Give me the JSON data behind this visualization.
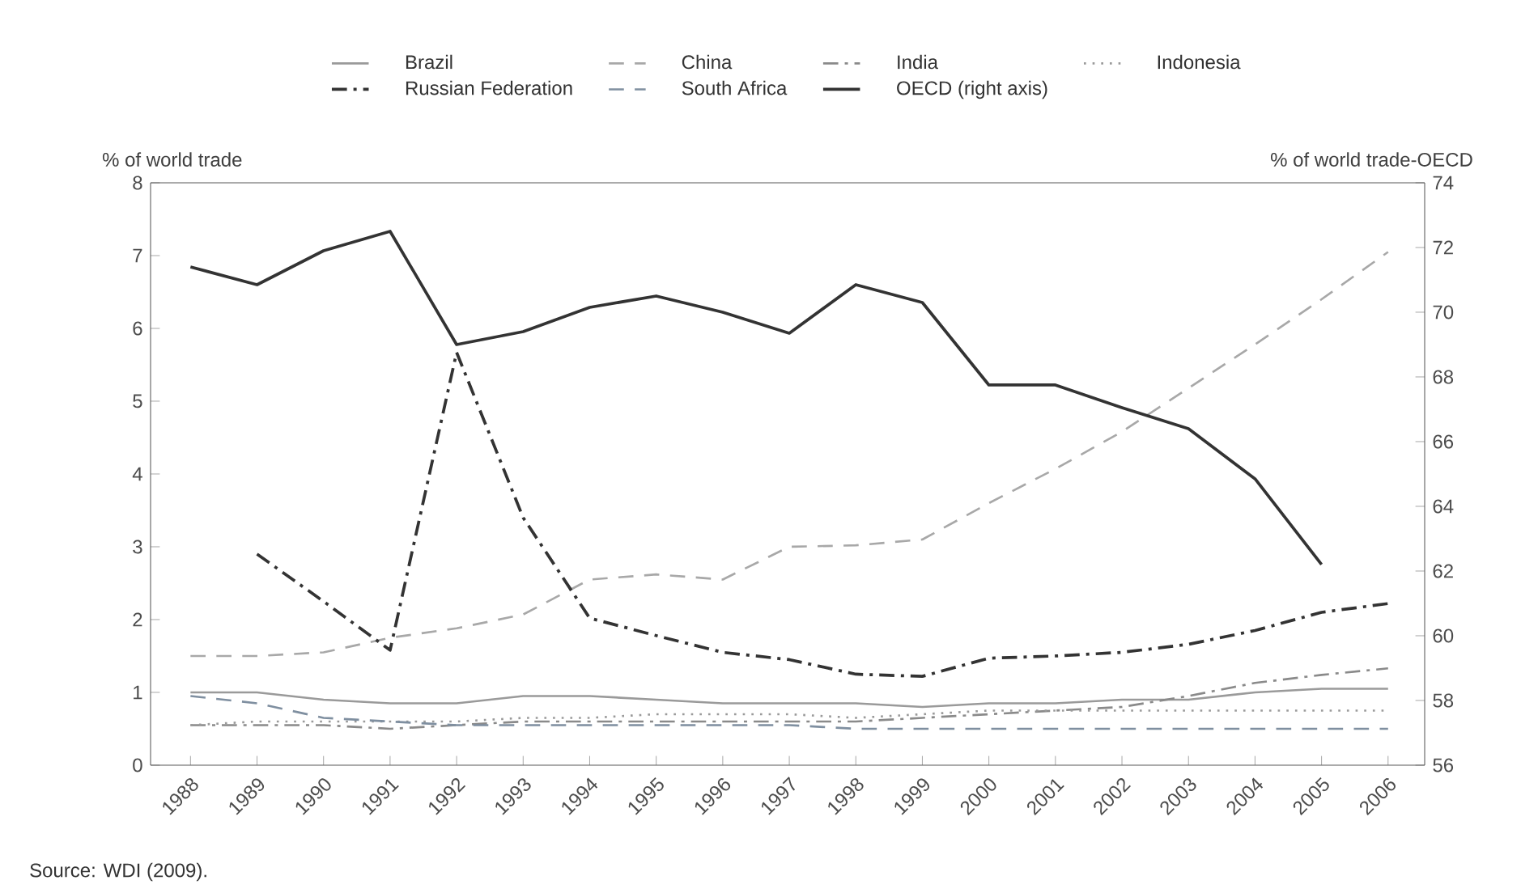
{
  "chart_data": {
    "type": "line",
    "ylabel": "% of world trade",
    "y2label": "% of world trade-OECD",
    "categories": [
      "1988",
      "1989",
      "1990",
      "1991",
      "1992",
      "1993",
      "1994",
      "1995",
      "1996",
      "1997",
      "1998",
      "1999",
      "2000",
      "2001",
      "2002",
      "2003",
      "2004",
      "2005",
      "2006"
    ],
    "series": [
      {
        "name": "Brazil",
        "color": "#9a9a9a",
        "line_style": "solid",
        "values": [
          1.0,
          1.0,
          0.9,
          0.85,
          0.85,
          0.95,
          0.95,
          0.9,
          0.85,
          0.85,
          0.85,
          0.8,
          0.85,
          0.85,
          0.9,
          0.9,
          1.0,
          1.05,
          1.05
        ]
      },
      {
        "name": "China",
        "color": "#a8a8a8",
        "line_style": "dashed",
        "values": [
          1.5,
          1.5,
          1.55,
          1.75,
          1.88,
          2.07,
          2.55,
          2.62,
          2.55,
          3.0,
          3.02,
          3.1,
          3.6,
          4.07,
          4.58,
          5.18,
          5.78,
          6.4,
          7.05
        ]
      },
      {
        "name": "India",
        "color": "#8a8a8a",
        "line_style": "dashdot",
        "values": [
          0.55,
          0.55,
          0.55,
          0.5,
          0.55,
          0.6,
          0.6,
          0.6,
          0.6,
          0.6,
          0.6,
          0.65,
          0.7,
          0.75,
          0.8,
          0.95,
          1.13,
          1.24,
          1.33
        ]
      },
      {
        "name": "Indonesia",
        "color": "#9a9a9a",
        "line_style": "dotted",
        "values": [
          0.55,
          0.6,
          0.6,
          0.6,
          0.6,
          0.65,
          0.65,
          0.7,
          0.7,
          0.7,
          0.65,
          0.7,
          0.75,
          0.75,
          0.75,
          0.75,
          0.75,
          0.75,
          0.75
        ]
      },
      {
        "name": "Russian Federation",
        "color": "#333333",
        "line_style": "dashdot",
        "values": [
          null,
          2.9,
          2.25,
          1.58,
          5.67,
          3.4,
          2.02,
          1.78,
          1.55,
          1.45,
          1.25,
          1.22,
          1.47,
          1.5,
          1.55,
          1.66,
          1.85,
          2.1,
          2.22
        ]
      },
      {
        "name": "South Africa",
        "color": "#7f8fa0",
        "line_style": "dashed",
        "values": [
          0.95,
          0.85,
          0.65,
          0.6,
          0.55,
          0.55,
          0.55,
          0.55,
          0.55,
          0.55,
          0.5,
          0.5,
          0.5,
          0.5,
          0.5,
          0.5,
          0.5,
          0.5,
          0.5
        ]
      },
      {
        "name": "OECD (right axis)",
        "color": "#333333",
        "line_style": "solid",
        "axis": "y2",
        "values": [
          71.4,
          70.85,
          71.9,
          72.5,
          69.0,
          69.4,
          70.15,
          70.5,
          70.0,
          69.35,
          70.85,
          70.3,
          67.75,
          67.75,
          67.05,
          66.4,
          64.85,
          62.2,
          null
        ]
      }
    ],
    "ylim": [
      0,
      8
    ],
    "yticks": [
      0,
      1,
      2,
      3,
      4,
      5,
      6,
      7,
      8
    ],
    "y2lim": [
      56,
      74
    ],
    "y2ticks": [
      56,
      58,
      60,
      62,
      64,
      66,
      68,
      70,
      72,
      74
    ],
    "legend": "top",
    "annotations": [
      "Source: WDI (2009)."
    ]
  }
}
